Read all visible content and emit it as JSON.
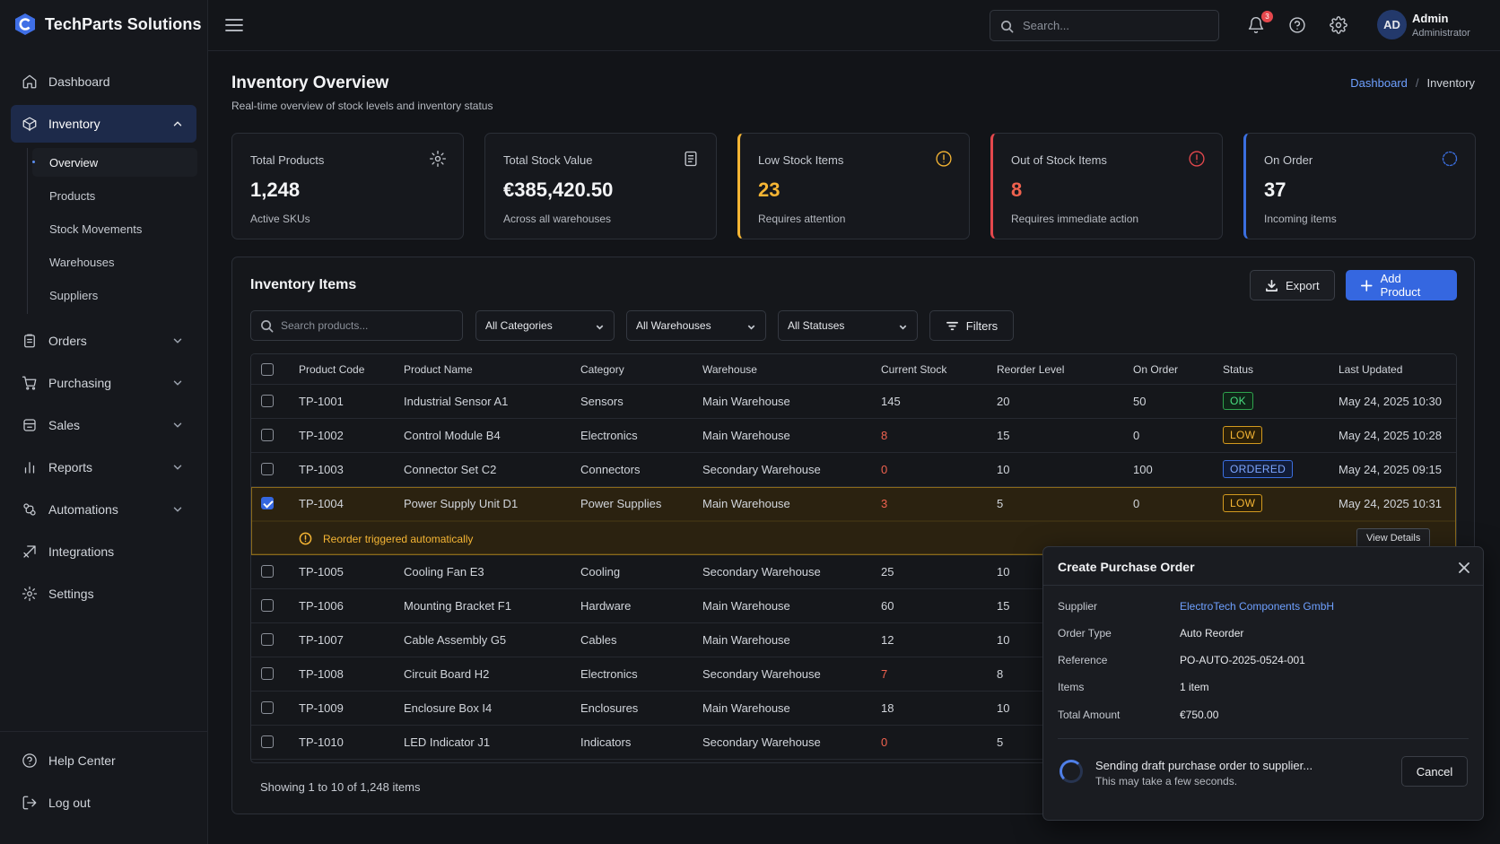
{
  "app": {
    "name": "TechParts Solutions"
  },
  "sidebar": {
    "items": [
      {
        "label": "Dashboard",
        "icon": "home-icon"
      },
      {
        "label": "Inventory",
        "icon": "box-icon",
        "active": true,
        "expanded": true
      },
      {
        "label": "Orders",
        "icon": "clipboard-icon"
      },
      {
        "label": "Purchasing",
        "icon": "cart-icon"
      },
      {
        "label": "Sales",
        "icon": "sales-icon"
      },
      {
        "label": "Reports",
        "icon": "bar-chart-icon"
      },
      {
        "label": "Automations",
        "icon": "automation-icon"
      },
      {
        "label": "Integrations",
        "icon": "integration-icon"
      },
      {
        "label": "Settings",
        "icon": "gear-icon"
      }
    ],
    "inventory_sub": [
      "Overview",
      "Products",
      "Stock Movements",
      "Warehouses",
      "Suppliers"
    ],
    "footer": [
      {
        "label": "Help Center",
        "icon": "help-icon"
      },
      {
        "label": "Log out",
        "icon": "logout-icon"
      }
    ]
  },
  "topbar": {
    "search_placeholder": "Search...",
    "notification_count": "3",
    "user": {
      "initials": "AD",
      "name": "Admin",
      "role": "Administrator"
    }
  },
  "page": {
    "title": "Inventory Overview",
    "subtitle": "Real-time overview of stock levels and inventory status",
    "breadcrumb": [
      "Dashboard",
      "Inventory"
    ]
  },
  "cards": [
    {
      "label": "Total Products",
      "value": "1,248",
      "sub": "Active SKUs",
      "icon": "gear-icon",
      "accent": "#2b2f37",
      "value_color": "#f3f4f6"
    },
    {
      "label": "Total Stock Value",
      "value": "€385,420.50",
      "sub": "Across all warehouses",
      "icon": "document-icon",
      "accent": "#2b2f37",
      "value_color": "#f3f4f6"
    },
    {
      "label": "Low Stock Items",
      "value": "23",
      "sub": "Requires attention",
      "icon": "warning-circle-icon",
      "accent": "#f5b534",
      "value_color": "#f5b534"
    },
    {
      "label": "Out of Stock Items",
      "value": "8",
      "sub": "Requires immediate action",
      "icon": "alert-circle-icon",
      "accent": "#e5484d",
      "value_color": "#f0624f"
    },
    {
      "label": "On Order",
      "value": "37",
      "sub": "Incoming items",
      "icon": "loading-circle-icon",
      "accent": "#3b6fe0",
      "value_color": "#f3f4f6"
    }
  ],
  "inventory": {
    "title": "Inventory Items",
    "export_label": "Export",
    "add_label": "Add Product",
    "search_placeholder": "Search products...",
    "filters": [
      "All Categories",
      "All Warehouses",
      "All Statuses"
    ],
    "filters_label": "Filters",
    "columns": [
      "Product Code",
      "Product Name",
      "Category",
      "Warehouse",
      "Current Stock",
      "Reorder Level",
      "On Order",
      "Status",
      "Last Updated"
    ],
    "rows": [
      {
        "code": "TP-1001",
        "name": "Industrial Sensor A1",
        "category": "Sensors",
        "warehouse": "Main Warehouse",
        "stock": "145",
        "reorder": "20",
        "on_order": "50",
        "status": "OK",
        "updated": "May 24, 2025 10:30",
        "stock_alert": false,
        "checked": false
      },
      {
        "code": "TP-1002",
        "name": "Control Module B4",
        "category": "Electronics",
        "warehouse": "Main Warehouse",
        "stock": "8",
        "reorder": "15",
        "on_order": "0",
        "status": "LOW",
        "updated": "May 24, 2025 10:28",
        "stock_alert": true,
        "checked": false
      },
      {
        "code": "TP-1003",
        "name": "Connector Set C2",
        "category": "Connectors",
        "warehouse": "Secondary Warehouse",
        "stock": "0",
        "reorder": "10",
        "on_order": "100",
        "status": "ORDERED",
        "updated": "May 24, 2025 09:15",
        "stock_alert": true,
        "checked": false
      },
      {
        "code": "TP-1004",
        "name": "Power Supply Unit D1",
        "category": "Power Supplies",
        "warehouse": "Main Warehouse",
        "stock": "3",
        "reorder": "5",
        "on_order": "0",
        "status": "LOW",
        "updated": "May 24, 2025 10:31",
        "stock_alert": true,
        "checked": true
      },
      {
        "code": "TP-1005",
        "name": "Cooling Fan E3",
        "category": "Cooling",
        "warehouse": "Secondary Warehouse",
        "stock": "25",
        "reorder": "10",
        "stock_alert": false,
        "checked": false
      },
      {
        "code": "TP-1006",
        "name": "Mounting Bracket F1",
        "category": "Hardware",
        "warehouse": "Main Warehouse",
        "stock": "60",
        "reorder": "15",
        "stock_alert": false,
        "checked": false
      },
      {
        "code": "TP-1007",
        "name": "Cable Assembly G5",
        "category": "Cables",
        "warehouse": "Main Warehouse",
        "stock": "12",
        "reorder": "10",
        "stock_alert": false,
        "checked": false
      },
      {
        "code": "TP-1008",
        "name": "Circuit Board H2",
        "category": "Electronics",
        "warehouse": "Secondary Warehouse",
        "stock": "7",
        "reorder": "8",
        "stock_alert": true,
        "checked": false
      },
      {
        "code": "TP-1009",
        "name": "Enclosure Box I4",
        "category": "Enclosures",
        "warehouse": "Main Warehouse",
        "stock": "18",
        "reorder": "10",
        "stock_alert": false,
        "checked": false
      },
      {
        "code": "TP-1010",
        "name": "LED Indicator J1",
        "category": "Indicators",
        "warehouse": "Secondary Warehouse",
        "stock": "0",
        "reorder": "5",
        "stock_alert": true,
        "checked": false
      }
    ],
    "alert_text": "Reorder triggered automatically",
    "view_details_label": "View Details",
    "showing": "Showing 1 to 10 of 1,248 items"
  },
  "modal": {
    "title": "Create Purchase Order",
    "fields": [
      {
        "key": "Supplier",
        "value": "ElectroTech Components GmbH",
        "link": true
      },
      {
        "key": "Order Type",
        "value": "Auto Reorder",
        "link": false
      },
      {
        "key": "Reference",
        "value": "PO-AUTO-2025-0524-001",
        "link": false
      },
      {
        "key": "Items",
        "value": "1 item",
        "link": false
      },
      {
        "key": "Total Amount",
        "value": "€750.00",
        "link": false
      }
    ],
    "sending": "Sending draft purchase order to supplier...",
    "sending_sub": "This may take a few seconds.",
    "cancel_label": "Cancel"
  }
}
